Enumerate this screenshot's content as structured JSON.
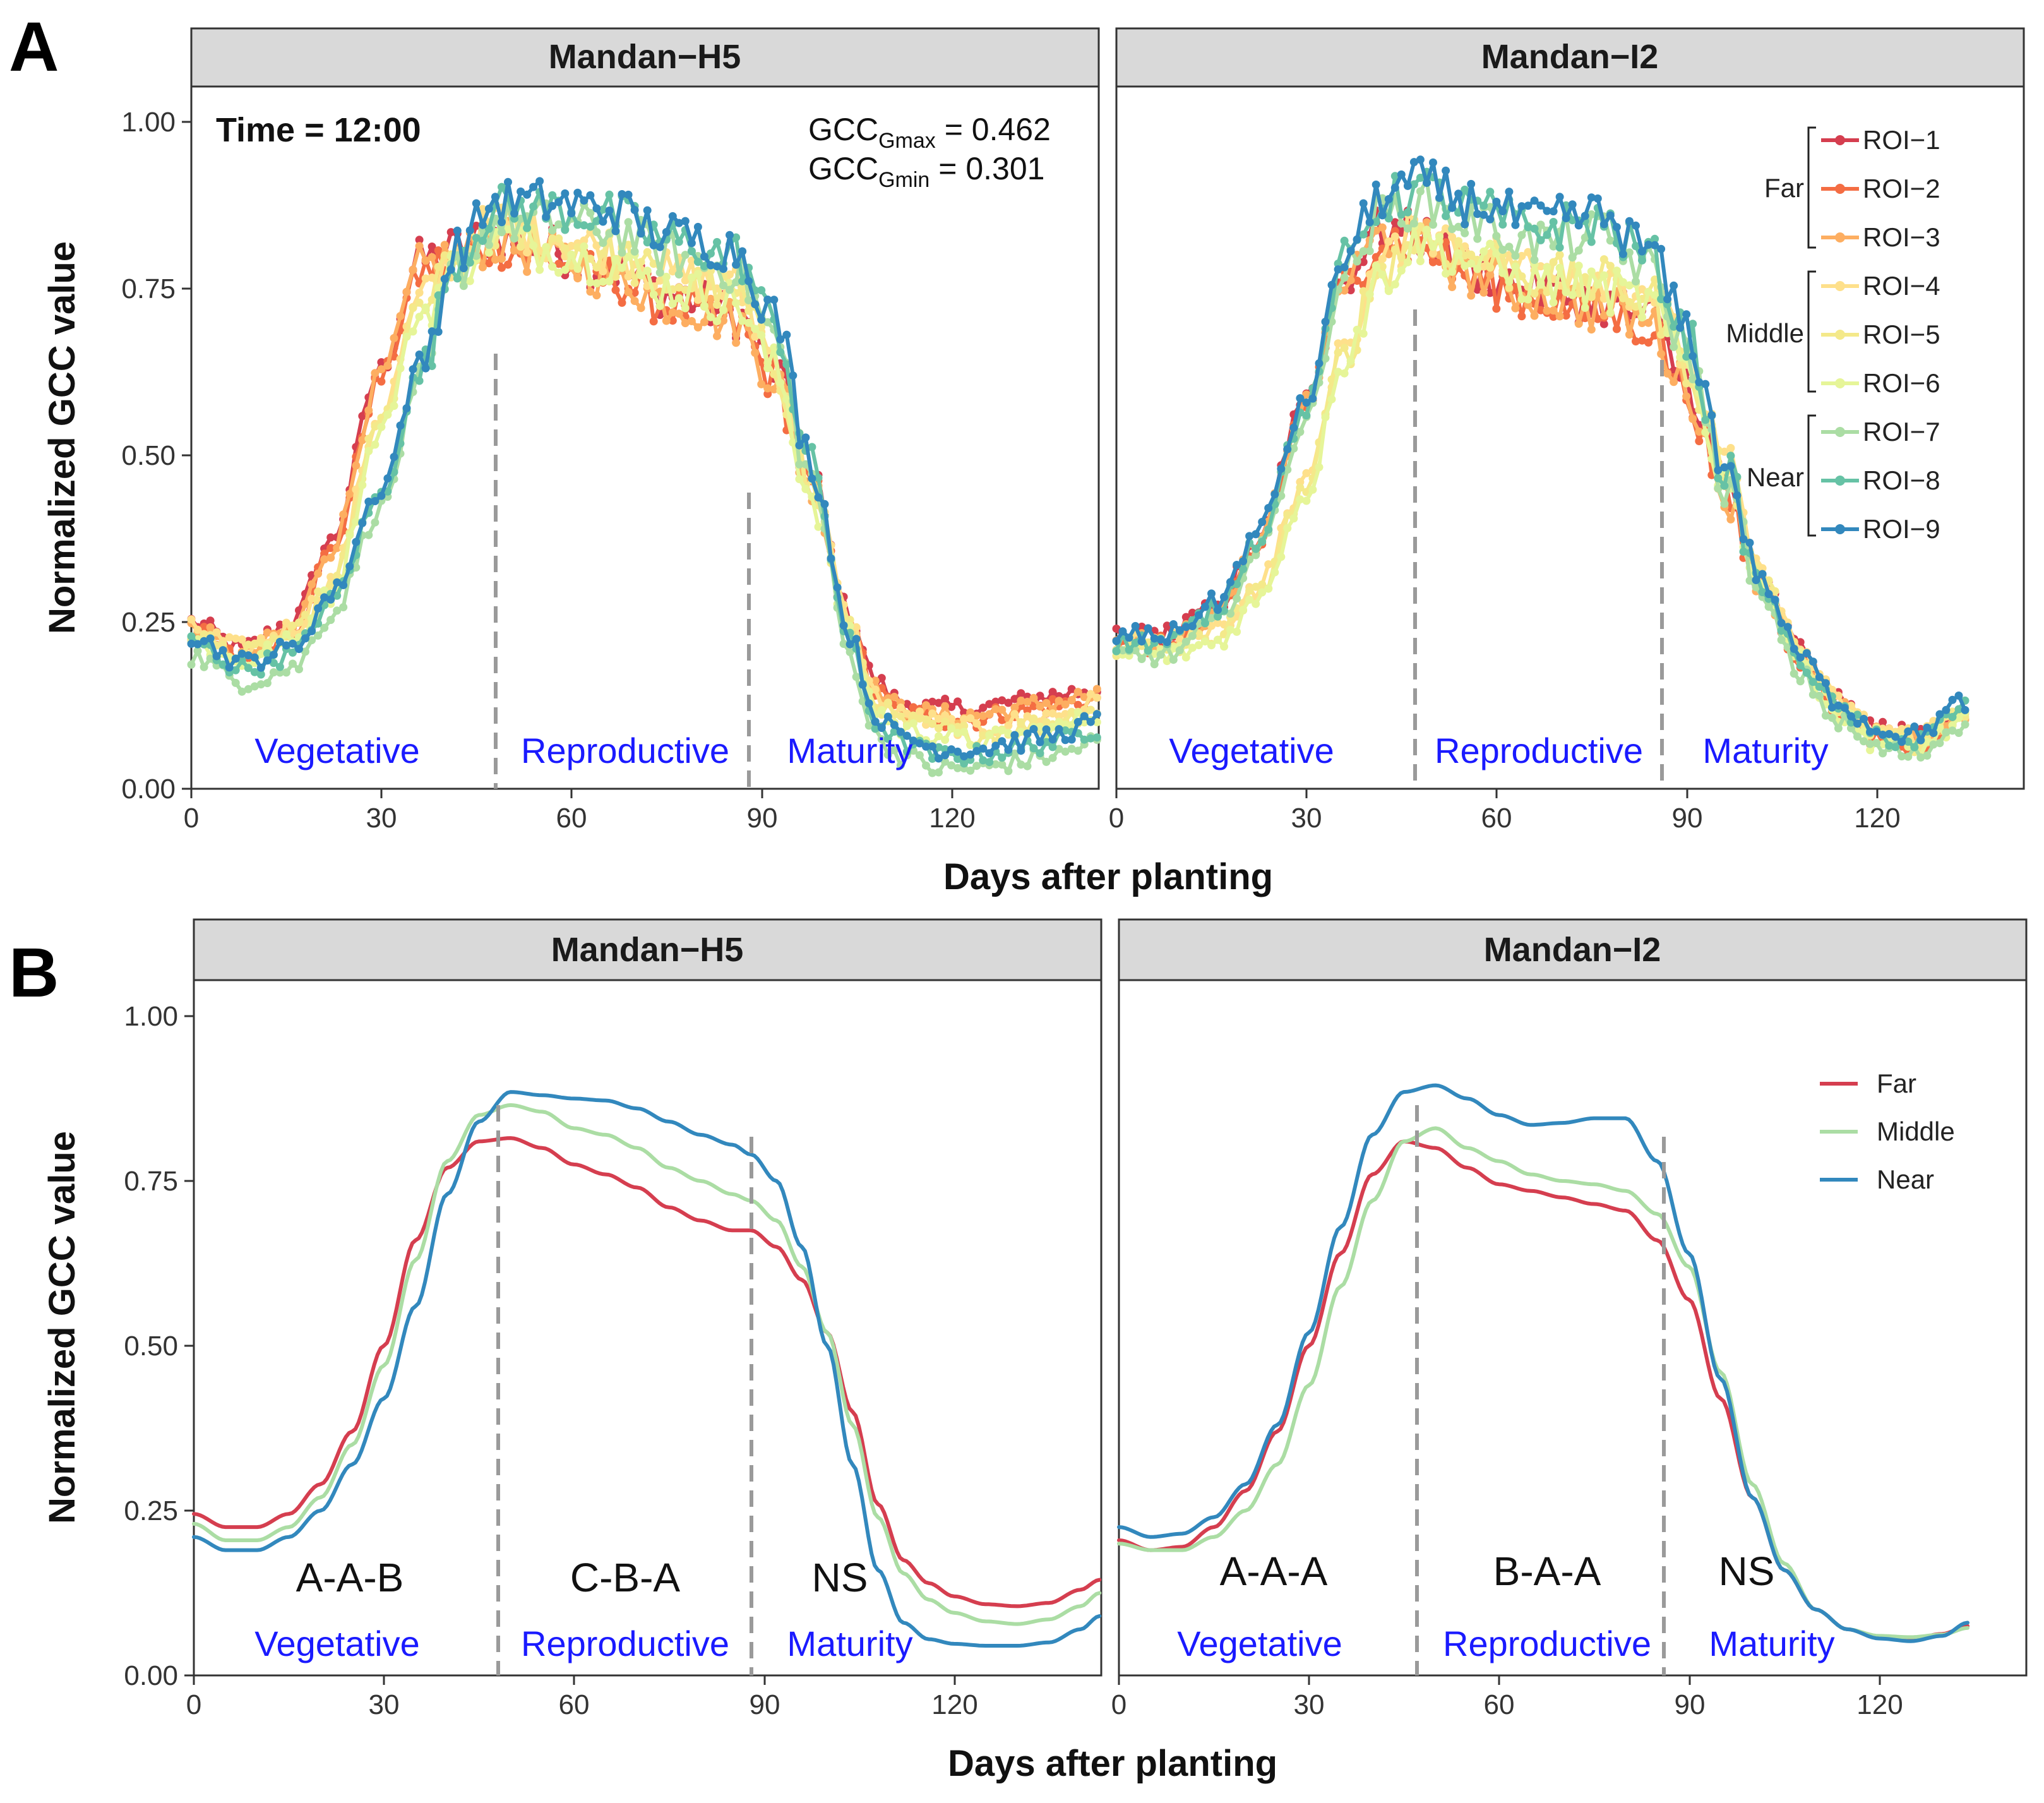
{
  "panels": {
    "A": {
      "letter": "A",
      "facets": [
        "Mandan−H5",
        "Mandan−I2"
      ]
    },
    "B": {
      "letter": "B",
      "facets": [
        "Mandan−H5",
        "Mandan−I2"
      ]
    }
  },
  "axis": {
    "ylabel": "Normalized GCC value",
    "xlabel": "Days after planting",
    "yticks": [
      "0.00",
      "0.25",
      "0.50",
      "0.75",
      "1.00"
    ],
    "xticks": [
      "0",
      "30",
      "60",
      "90",
      "120"
    ]
  },
  "annotation": {
    "time": "Time = 12:00",
    "gcc_max_base": "GCC",
    "gcc_max_sub": "Gmax",
    "gcc_max_value": " = 0.462",
    "gcc_min_base": "GCC",
    "gcc_min_sub": "Gmin",
    "gcc_min_value": " = 0.301"
  },
  "stages": [
    "Vegetative",
    "Reproductive",
    "Maturity"
  ],
  "significance": {
    "H5": [
      "A-A-B",
      "C-B-A",
      "NS"
    ],
    "I2": [
      "A-A-A",
      "B-A-A",
      "NS"
    ]
  },
  "legend_roi": {
    "groups": [
      "Far",
      "Middle",
      "Near"
    ],
    "items": [
      "ROI−1",
      "ROI−2",
      "ROI−3",
      "ROI−4",
      "ROI−5",
      "ROI−6",
      "ROI−7",
      "ROI−8",
      "ROI−9"
    ]
  },
  "legend_group": [
    "Far",
    "Middle",
    "Near"
  ],
  "colors": {
    "roi": [
      "#d53e4f",
      "#f46d43",
      "#fdae61",
      "#fee08b",
      "#f4e98a",
      "#e6f598",
      "#abdda4",
      "#66c2a5",
      "#3288bd"
    ],
    "far": "#d53e4f",
    "middle": "#abdda4",
    "near": "#3288bd",
    "stage_text": "#1a1aff",
    "divider": "#9a9a9a"
  },
  "chart_data": [
    {
      "type": "line",
      "panel": "A",
      "facet": "Mandan−H5",
      "title": "Mandan−H5",
      "xlabel": "Days after planting",
      "ylabel": "Normalized GCC value",
      "xlim": [
        0,
        143
      ],
      "ylim": [
        0,
        1.0
      ],
      "stage_boundaries": [
        48,
        88
      ],
      "series_note": "ROI−1 to ROI−9 share a seasonal shape (points every ~1 day, visually approximated)",
      "anchor_x": [
        0,
        8,
        16,
        22,
        30,
        36,
        42,
        48,
        56,
        66,
        76,
        86,
        92,
        98,
        104,
        108,
        112,
        118,
        124,
        130,
        136,
        143
      ],
      "roi_envelope_y": {
        "far": [
          0.24,
          0.2,
          0.24,
          0.36,
          0.62,
          0.78,
          0.8,
          0.82,
          0.8,
          0.77,
          0.73,
          0.7,
          0.62,
          0.45,
          0.25,
          0.15,
          0.12,
          0.11,
          0.11,
          0.12,
          0.13,
          0.14
        ],
        "middle": [
          0.23,
          0.2,
          0.23,
          0.3,
          0.55,
          0.72,
          0.79,
          0.84,
          0.82,
          0.8,
          0.76,
          0.74,
          0.64,
          0.45,
          0.24,
          0.13,
          0.1,
          0.09,
          0.08,
          0.09,
          0.1,
          0.12
        ],
        "near": [
          0.22,
          0.18,
          0.2,
          0.28,
          0.44,
          0.62,
          0.8,
          0.87,
          0.87,
          0.86,
          0.82,
          0.8,
          0.7,
          0.48,
          0.22,
          0.1,
          0.07,
          0.05,
          0.05,
          0.06,
          0.07,
          0.09
        ]
      }
    },
    {
      "type": "line",
      "panel": "A",
      "facet": "Mandan−I2",
      "title": "Mandan−I2",
      "xlabel": "Days after planting",
      "ylabel": "Normalized GCC value",
      "xlim": [
        0,
        143
      ],
      "ylim": [
        0,
        1.0
      ],
      "stage_boundaries": [
        47,
        86
      ],
      "anchor_x": [
        0,
        8,
        16,
        22,
        30,
        36,
        42,
        48,
        56,
        66,
        76,
        84,
        90,
        96,
        102,
        108,
        114,
        120,
        126,
        134
      ],
      "roi_envelope_y": {
        "far": [
          0.22,
          0.22,
          0.26,
          0.36,
          0.58,
          0.76,
          0.83,
          0.82,
          0.77,
          0.74,
          0.72,
          0.7,
          0.6,
          0.45,
          0.3,
          0.2,
          0.12,
          0.08,
          0.07,
          0.11
        ],
        "middle": [
          0.21,
          0.21,
          0.23,
          0.29,
          0.45,
          0.66,
          0.78,
          0.83,
          0.8,
          0.77,
          0.76,
          0.74,
          0.64,
          0.48,
          0.31,
          0.2,
          0.12,
          0.08,
          0.07,
          0.11
        ],
        "near": [
          0.22,
          0.22,
          0.27,
          0.37,
          0.57,
          0.79,
          0.88,
          0.9,
          0.87,
          0.84,
          0.85,
          0.8,
          0.68,
          0.48,
          0.3,
          0.19,
          0.12,
          0.08,
          0.07,
          0.12
        ]
      }
    },
    {
      "type": "line",
      "panel": "B",
      "facet": "Mandan−H5",
      "title": "Mandan−H5",
      "xlabel": "Days after planting",
      "ylabel": "Normalized GCC value",
      "xlim": [
        0,
        143
      ],
      "ylim": [
        0,
        1.0
      ],
      "stage_boundaries": [
        48,
        88
      ],
      "series": [
        {
          "name": "Far",
          "x": [
            0,
            5,
            10,
            15,
            20,
            25,
            30,
            35,
            40,
            45,
            50,
            55,
            60,
            65,
            70,
            75,
            80,
            85,
            88,
            92,
            96,
            100,
            104,
            108,
            112,
            116,
            120,
            125,
            130,
            135,
            140,
            143
          ],
          "y": [
            0.245,
            0.225,
            0.225,
            0.245,
            0.29,
            0.37,
            0.5,
            0.66,
            0.77,
            0.81,
            0.815,
            0.8,
            0.775,
            0.76,
            0.74,
            0.71,
            0.69,
            0.675,
            0.675,
            0.65,
            0.6,
            0.52,
            0.4,
            0.26,
            0.175,
            0.14,
            0.12,
            0.108,
            0.105,
            0.11,
            0.13,
            0.145
          ]
        },
        {
          "name": "Middle",
          "x": [
            0,
            5,
            10,
            15,
            20,
            25,
            30,
            35,
            40,
            45,
            50,
            55,
            60,
            65,
            70,
            75,
            80,
            85,
            88,
            92,
            96,
            100,
            104,
            108,
            112,
            116,
            120,
            125,
            130,
            135,
            140,
            143
          ],
          "y": [
            0.23,
            0.205,
            0.205,
            0.225,
            0.27,
            0.35,
            0.47,
            0.63,
            0.78,
            0.85,
            0.865,
            0.855,
            0.83,
            0.82,
            0.8,
            0.77,
            0.75,
            0.73,
            0.72,
            0.69,
            0.62,
            0.52,
            0.38,
            0.24,
            0.155,
            0.115,
            0.095,
            0.082,
            0.078,
            0.085,
            0.105,
            0.125
          ]
        },
        {
          "name": "Near",
          "x": [
            0,
            5,
            10,
            15,
            20,
            25,
            30,
            35,
            40,
            45,
            50,
            55,
            60,
            65,
            70,
            75,
            80,
            85,
            88,
            92,
            96,
            100,
            104,
            108,
            112,
            116,
            120,
            125,
            130,
            135,
            140,
            143
          ],
          "y": [
            0.21,
            0.19,
            0.19,
            0.21,
            0.25,
            0.32,
            0.42,
            0.56,
            0.73,
            0.84,
            0.885,
            0.88,
            0.875,
            0.872,
            0.86,
            0.84,
            0.82,
            0.805,
            0.79,
            0.75,
            0.65,
            0.5,
            0.32,
            0.16,
            0.08,
            0.055,
            0.048,
            0.045,
            0.045,
            0.05,
            0.07,
            0.09
          ]
        }
      ]
    },
    {
      "type": "line",
      "panel": "B",
      "facet": "Mandan−I2",
      "title": "Mandan−I2",
      "xlabel": "Days after planting",
      "ylabel": "Normalized GCC value",
      "xlim": [
        0,
        143
      ],
      "ylim": [
        0,
        1.0
      ],
      "stage_boundaries": [
        47,
        86
      ],
      "series": [
        {
          "name": "Far",
          "x": [
            0,
            5,
            10,
            15,
            20,
            25,
            30,
            35,
            40,
            45,
            50,
            55,
            60,
            65,
            70,
            75,
            80,
            85,
            90,
            95,
            100,
            105,
            110,
            115,
            120,
            125,
            130,
            134
          ],
          "y": [
            0.205,
            0.19,
            0.195,
            0.225,
            0.28,
            0.37,
            0.5,
            0.64,
            0.76,
            0.81,
            0.8,
            0.77,
            0.745,
            0.735,
            0.725,
            0.715,
            0.705,
            0.66,
            0.57,
            0.42,
            0.27,
            0.16,
            0.1,
            0.07,
            0.057,
            0.055,
            0.063,
            0.075
          ]
        },
        {
          "name": "Middle",
          "x": [
            0,
            5,
            10,
            15,
            20,
            25,
            30,
            35,
            40,
            45,
            50,
            55,
            60,
            65,
            70,
            75,
            80,
            85,
            90,
            95,
            100,
            105,
            110,
            115,
            120,
            125,
            130,
            134
          ],
          "y": [
            0.2,
            0.19,
            0.19,
            0.21,
            0.25,
            0.32,
            0.44,
            0.59,
            0.72,
            0.81,
            0.83,
            0.8,
            0.78,
            0.76,
            0.75,
            0.745,
            0.735,
            0.7,
            0.62,
            0.46,
            0.29,
            0.17,
            0.1,
            0.07,
            0.06,
            0.058,
            0.062,
            0.072
          ]
        },
        {
          "name": "Near",
          "x": [
            0,
            5,
            10,
            15,
            20,
            25,
            30,
            35,
            40,
            45,
            50,
            55,
            60,
            65,
            70,
            75,
            80,
            85,
            90,
            95,
            100,
            105,
            110,
            115,
            120,
            125,
            130,
            134
          ],
          "y": [
            0.225,
            0.21,
            0.215,
            0.24,
            0.29,
            0.38,
            0.52,
            0.68,
            0.82,
            0.885,
            0.895,
            0.875,
            0.85,
            0.835,
            0.838,
            0.845,
            0.845,
            0.78,
            0.64,
            0.45,
            0.27,
            0.16,
            0.1,
            0.07,
            0.056,
            0.052,
            0.06,
            0.08
          ]
        }
      ]
    }
  ]
}
